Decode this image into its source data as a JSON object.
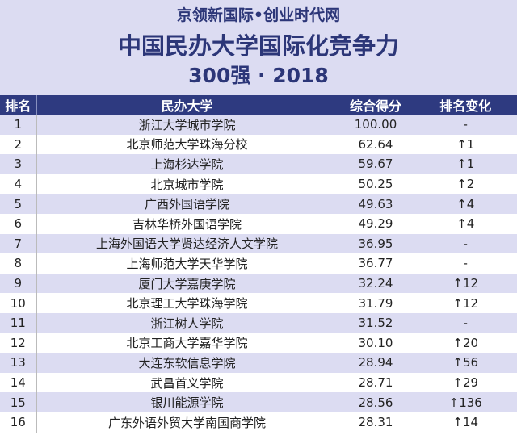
{
  "header": {
    "site": "京领新国际•创业时代网",
    "title": "中国民办大学国际化竞争力",
    "subtitle": "300强 · 2018"
  },
  "columns": [
    "排名",
    "民办大学",
    "综合得分",
    "排名变化"
  ],
  "rows": [
    [
      "1",
      "浙江大学城市学院",
      "100.00",
      "-"
    ],
    [
      "2",
      "北京师范大学珠海分校",
      "62.64",
      "↑1"
    ],
    [
      "3",
      "上海杉达学院",
      "59.67",
      "↑1"
    ],
    [
      "4",
      "北京城市学院",
      "50.25",
      "↑2"
    ],
    [
      "5",
      "广西外国语学院",
      "49.63",
      "↑4"
    ],
    [
      "6",
      "吉林华桥外国语学院",
      "49.29",
      "↑4"
    ],
    [
      "7",
      "上海外国语大学贤达经济人文学院",
      "36.95",
      "-"
    ],
    [
      "8",
      "上海师范大学天华学院",
      "36.77",
      "-"
    ],
    [
      "9",
      "厦门大学嘉庚学院",
      "32.24",
      "↑12"
    ],
    [
      "10",
      "北京理工大学珠海学院",
      "31.79",
      "↑12"
    ],
    [
      "11",
      "浙江树人学院",
      "31.52",
      "-"
    ],
    [
      "12",
      "北京工商大学嘉华学院",
      "30.10",
      "↑20"
    ],
    [
      "13",
      "大连东软信息学院",
      "28.94",
      "↑56"
    ],
    [
      "14",
      "武昌首义学院",
      "28.71",
      "↑29"
    ],
    [
      "15",
      "银川能源学院",
      "28.56",
      "↑136"
    ],
    [
      "16",
      "广东外语外贸大学南国商学院",
      "28.31",
      "↑14"
    ]
  ],
  "colors": {
    "header_bg": "#dcdcf2",
    "accent": "#2e3a80",
    "stripe": "#dcdcf2"
  }
}
